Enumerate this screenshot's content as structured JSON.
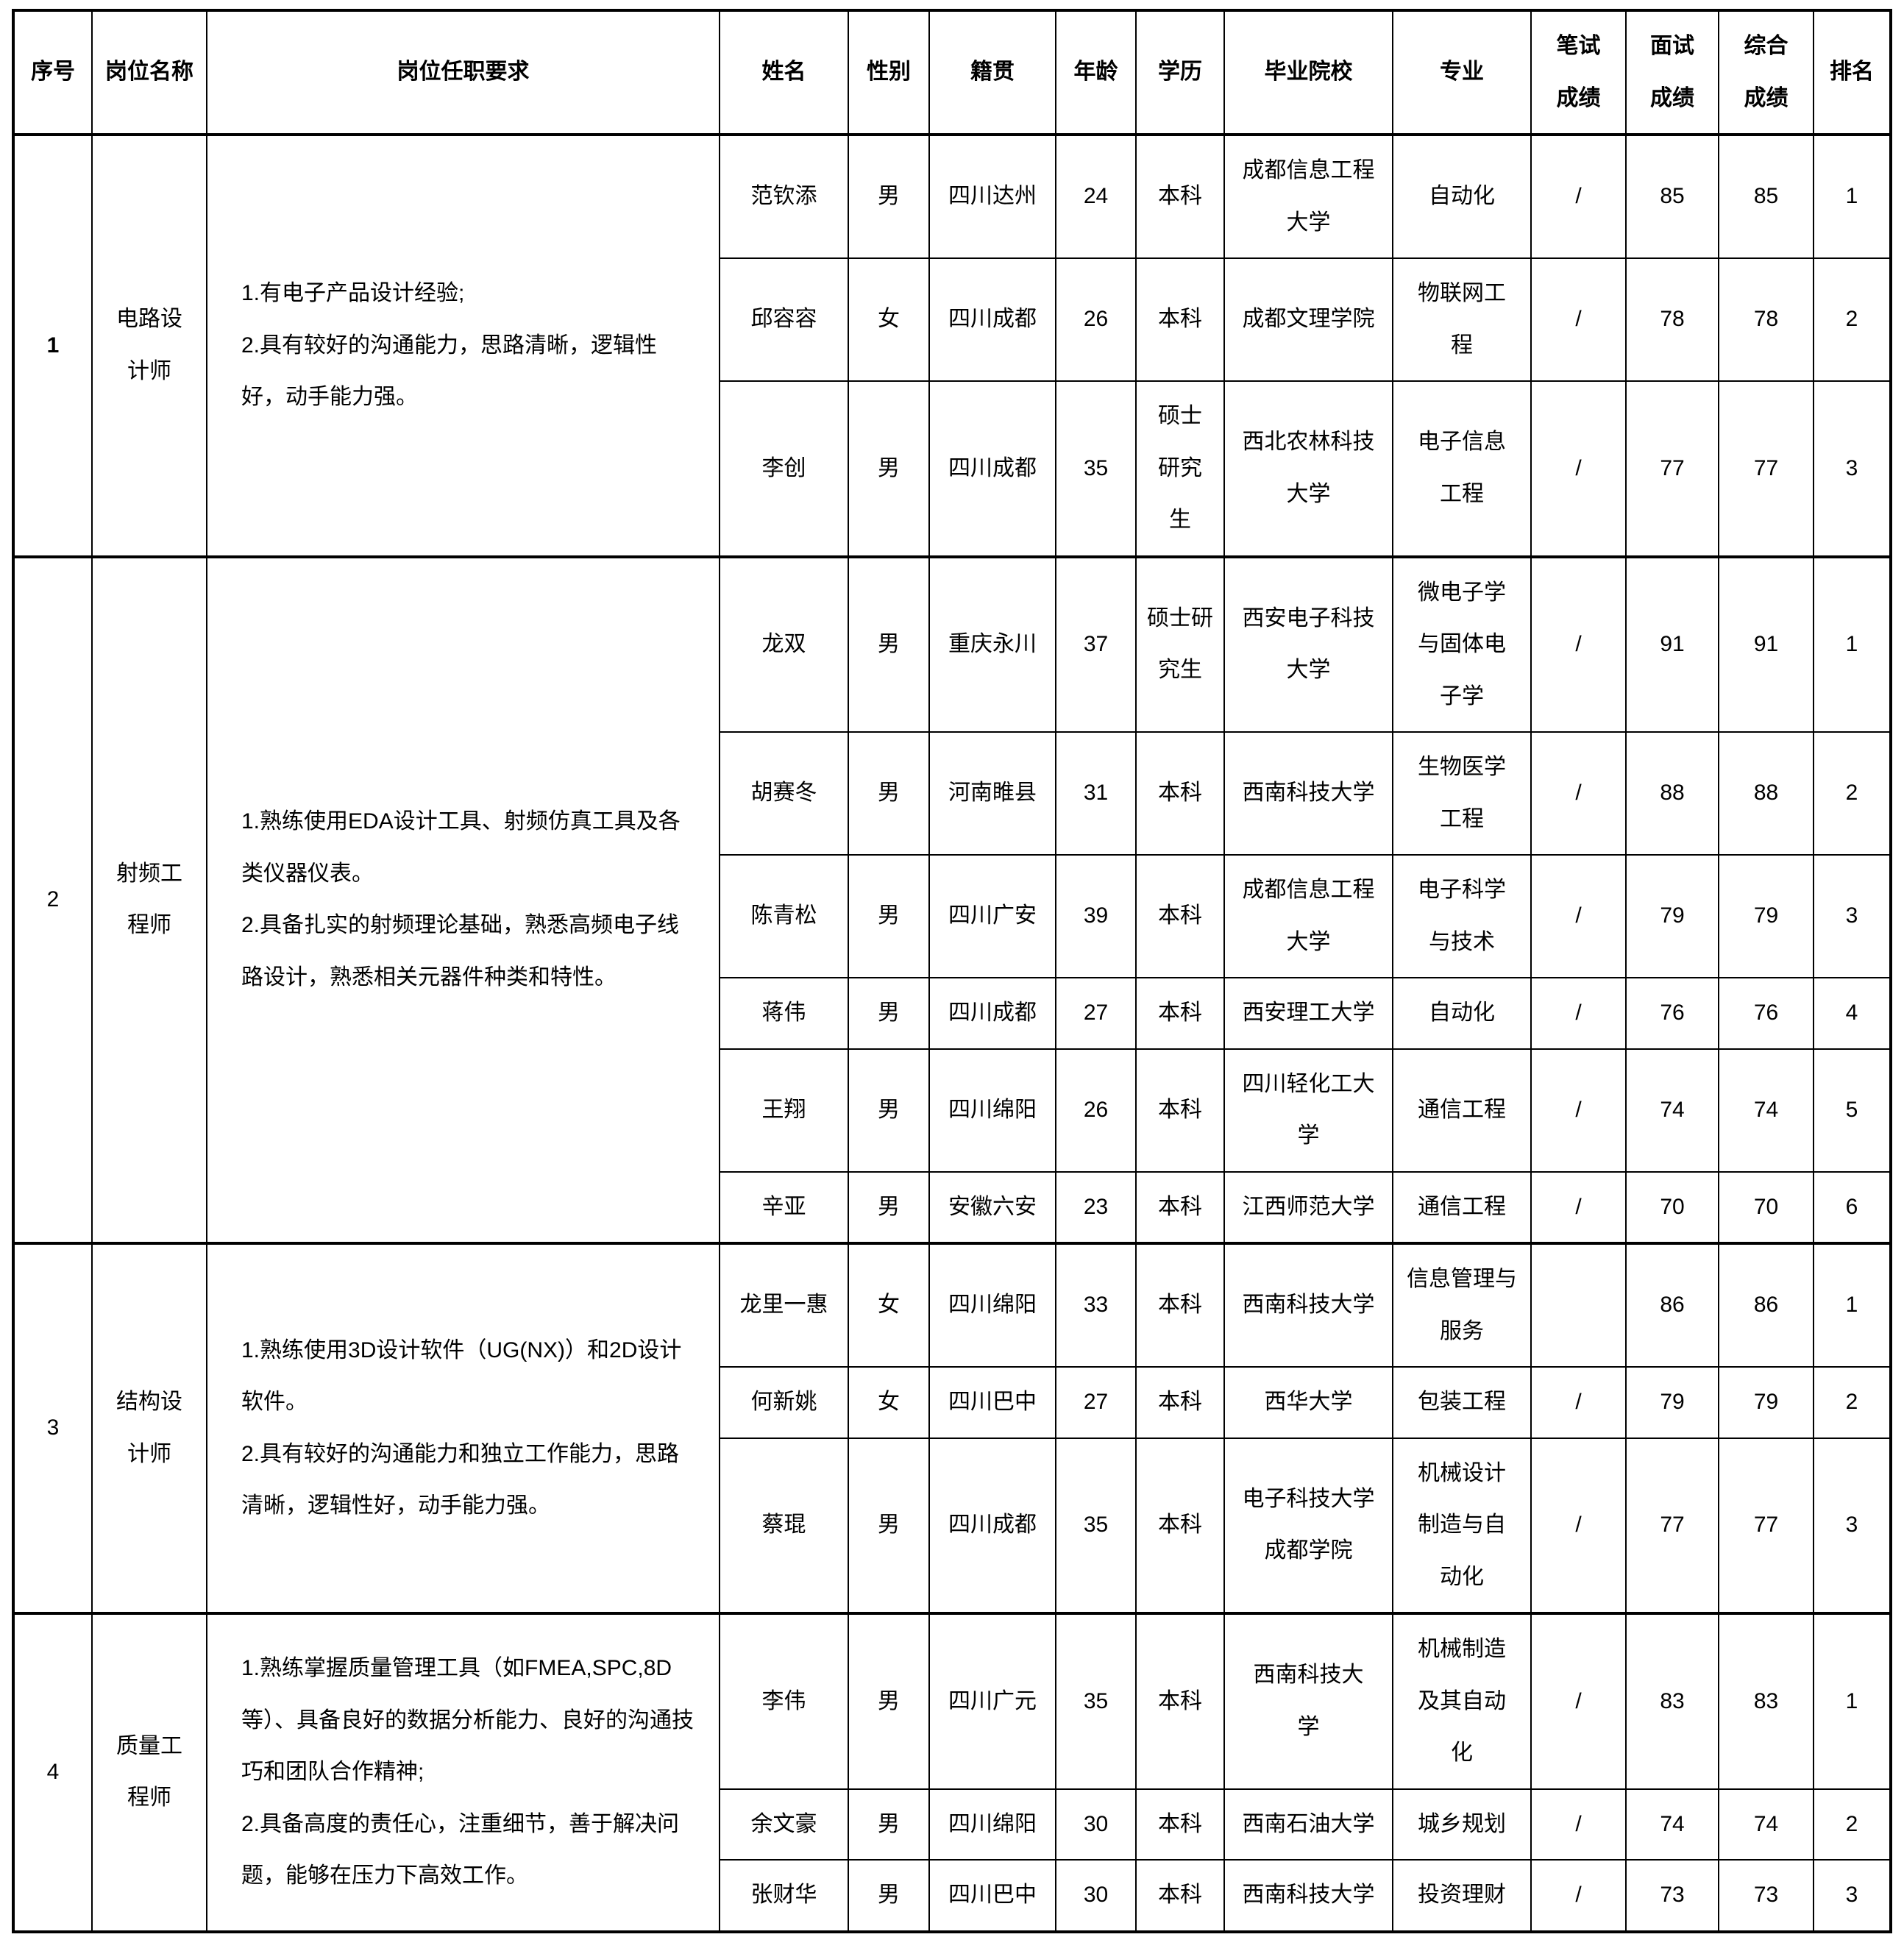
{
  "colors": {
    "border": "#000000",
    "text": "#000000",
    "background": "#ffffff"
  },
  "table": {
    "columns": [
      "序号",
      "岗位名称",
      "岗位任职要求",
      "姓名",
      "性别",
      "籍贯",
      "年龄",
      "学历",
      "毕业院校",
      "专业",
      "笔试\n成绩",
      "面试\n成绩",
      "综合\n成绩",
      "排名"
    ],
    "groups": [
      {
        "no": "1",
        "position": "电路设\n计师",
        "requirements": "1.有电子产品设计经验;\n2.具有较好的沟通能力，思路清晰，逻辑性\n好，动手能力强。",
        "candidates": [
          {
            "name": "范钦添",
            "gender": "男",
            "hometown": "四川达州",
            "age": "24",
            "education": "本科",
            "school": "成都信息工程\n大学",
            "major": "自动化",
            "written": "/",
            "interview": "85",
            "overall": "85",
            "rank": "1"
          },
          {
            "name": "邱容容",
            "gender": "女",
            "hometown": "四川成都",
            "age": "26",
            "education": "本科",
            "school": "成都文理学院",
            "major": "物联网工\n程",
            "written": "/",
            "interview": "78",
            "overall": "78",
            "rank": "2"
          },
          {
            "name": "李创",
            "gender": "男",
            "hometown": "四川成都",
            "age": "35",
            "education": "硕士\n研究\n生",
            "school": "西北农林科技\n大学",
            "major": "电子信息\n工程",
            "written": "/",
            "interview": "77",
            "overall": "77",
            "rank": "3"
          }
        ]
      },
      {
        "no": "2",
        "position": "射频工\n程师",
        "requirements": "1.熟练使用EDA设计工具、射频仿真工具及各\n类仪器仪表。\n2.具备扎实的射频理论基础，熟悉高频电子线\n路设计，熟悉相关元器件种类和特性。",
        "candidates": [
          {
            "name": "龙双",
            "gender": "男",
            "hometown": "重庆永川",
            "age": "37",
            "education": "硕士研\n究生",
            "school": "西安电子科技\n大学",
            "major": "微电子学\n与固体电\n子学",
            "written": "/",
            "interview": "91",
            "overall": "91",
            "rank": "1"
          },
          {
            "name": "胡赛冬",
            "gender": "男",
            "hometown": "河南睢县",
            "age": "31",
            "education": "本科",
            "school": "西南科技大学",
            "major": "生物医学\n工程",
            "written": "/",
            "interview": "88",
            "overall": "88",
            "rank": "2"
          },
          {
            "name": "陈青松",
            "gender": "男",
            "hometown": "四川广安",
            "age": "39",
            "education": "本科",
            "school": "成都信息工程\n大学",
            "major": "电子科学\n与技术",
            "written": "/",
            "interview": "79",
            "overall": "79",
            "rank": "3"
          },
          {
            "name": "蒋伟",
            "gender": "男",
            "hometown": "四川成都",
            "age": "27",
            "education": "本科",
            "school": "西安理工大学",
            "major": "自动化",
            "written": "/",
            "interview": "76",
            "overall": "76",
            "rank": "4"
          },
          {
            "name": "王翔",
            "gender": "男",
            "hometown": "四川绵阳",
            "age": "26",
            "education": "本科",
            "school": "四川轻化工大\n学",
            "major": "通信工程",
            "written": "/",
            "interview": "74",
            "overall": "74",
            "rank": "5"
          },
          {
            "name": "辛亚",
            "gender": "男",
            "hometown": "安徽六安",
            "age": "23",
            "education": "本科",
            "school": "江西师范大学",
            "major": "通信工程",
            "written": "/",
            "interview": "70",
            "overall": "70",
            "rank": "6"
          }
        ]
      },
      {
        "no": "3",
        "position": "结构设\n计师",
        "requirements": "1.熟练使用3D设计软件（UG(NX)）和2D设计\n软件。\n2.具有较好的沟通能力和独立工作能力，思路\n清晰，逻辑性好，动手能力强。",
        "candidates": [
          {
            "name": "龙里一惠",
            "gender": "女",
            "hometown": "四川绵阳",
            "age": "33",
            "education": "本科",
            "school": "西南科技大学",
            "major": "信息管理与\n服务",
            "written": "",
            "interview": "86",
            "overall": "86",
            "rank": "1"
          },
          {
            "name": "何新姚",
            "gender": "女",
            "hometown": "四川巴中",
            "age": "27",
            "education": "本科",
            "school": "西华大学",
            "major": "包装工程",
            "written": "/",
            "interview": "79",
            "overall": "79",
            "rank": "2"
          },
          {
            "name": "蔡琨",
            "gender": "男",
            "hometown": "四川成都",
            "age": "35",
            "education": "本科",
            "school": "电子科技大学\n成都学院",
            "major": "机械设计\n制造与自\n动化",
            "written": "/",
            "interview": "77",
            "overall": "77",
            "rank": "3"
          }
        ]
      },
      {
        "no": "4",
        "position": "质量工\n程师",
        "requirements": "1.熟练掌握质量管理工具（如FMEA,SPC,8D\n等）、具备良好的数据分析能力、良好的沟通技\n巧和团队合作精神;\n2.具备高度的责任心，注重细节，善于解决问\n题，能够在压力下高效工作。",
        "candidates": [
          {
            "name": "李伟",
            "gender": "男",
            "hometown": "四川广元",
            "age": "35",
            "education": "本科",
            "school": "西南科技大\n学",
            "major": "机械制造\n及其自动\n化",
            "written": "/",
            "interview": "83",
            "overall": "83",
            "rank": "1"
          },
          {
            "name": "余文豪",
            "gender": "男",
            "hometown": "四川绵阳",
            "age": "30",
            "education": "本科",
            "school": "西南石油大学",
            "major": "城乡规划",
            "written": "/",
            "interview": "74",
            "overall": "74",
            "rank": "2"
          },
          {
            "name": "张财华",
            "gender": "男",
            "hometown": "四川巴中",
            "age": "30",
            "education": "本科",
            "school": "西南科技大学",
            "major": "投资理财",
            "written": "/",
            "interview": "73",
            "overall": "73",
            "rank": "3"
          }
        ]
      }
    ]
  }
}
